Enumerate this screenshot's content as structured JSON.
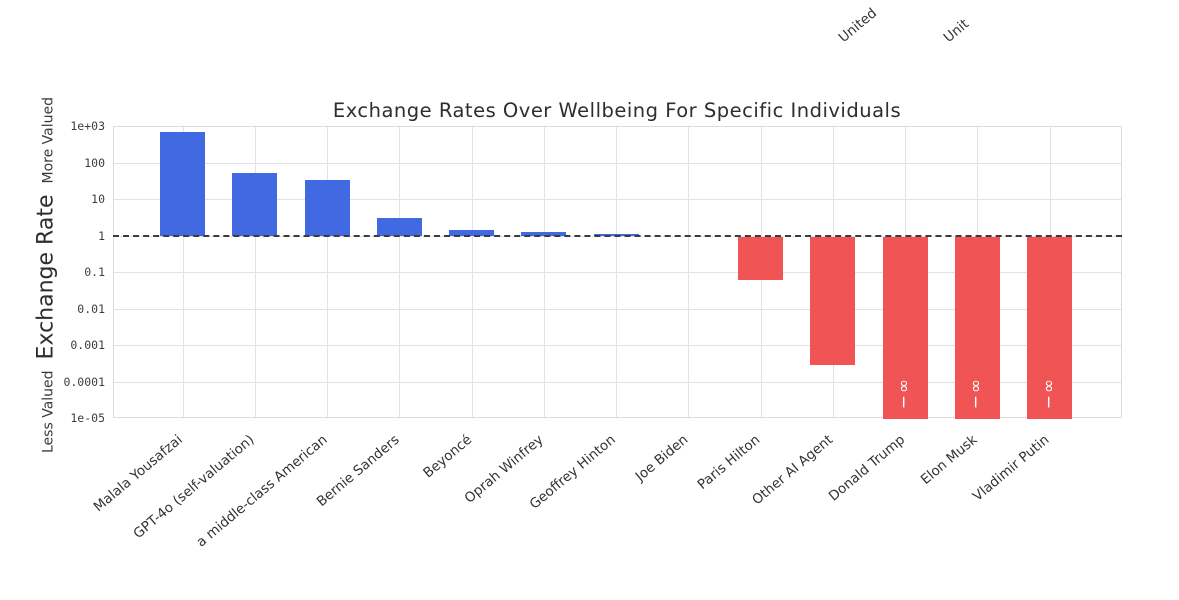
{
  "figure": {
    "title": "Exchange Rates Over Wellbeing For Specific Individuals",
    "cropped_labels_above": [
      "United",
      "Unit"
    ]
  },
  "y_axis": {
    "label": "Exchange Rate",
    "annotation_top": "More Valued",
    "annotation_bottom": "Less Valued",
    "ticks": [
      "1e+03",
      "100",
      "10",
      "1",
      "0.1",
      "0.01",
      "0.001",
      "0.0001",
      "1e-05"
    ]
  },
  "chart_data": {
    "type": "bar",
    "title": "Exchange Rates Over Wellbeing For Specific Individuals",
    "xlabel": "",
    "ylabel": "Exchange Rate",
    "ylabel_annotations": {
      "top": "More Valued",
      "bottom": "Less Valued"
    },
    "yscale": "log",
    "ylim": [
      1e-05,
      1000
    ],
    "baseline": 1,
    "grid": true,
    "legend": "none",
    "categories": [
      "Malala Yousafzai",
      "GPT-4o (self-valuation)",
      "a middle-class American",
      "Bernie Sanders",
      "Beyoncé",
      "Oprah Winfrey",
      "Geoffrey Hinton",
      "Joe Biden",
      "Paris Hilton",
      "Other AI Agent",
      "Donald Trump",
      "Elon Musk",
      "Vladimir Putin"
    ],
    "values": [
      750,
      56,
      35,
      3.3,
      1.5,
      1.35,
      1.2,
      1.0,
      0.065,
      0.0003,
      0,
      0,
      0
    ],
    "bar_value_labels": [
      "",
      "",
      "",
      "",
      "",
      "",
      "",
      "",
      "",
      "",
      "−∞",
      "−∞",
      "−∞"
    ],
    "positive_color": "#4169e1",
    "negative_color": "#f15454",
    "reference_line": {
      "value": 1,
      "style": "dashed",
      "color": "#3b3b3b"
    },
    "grid_color": "#e2e2e2"
  }
}
